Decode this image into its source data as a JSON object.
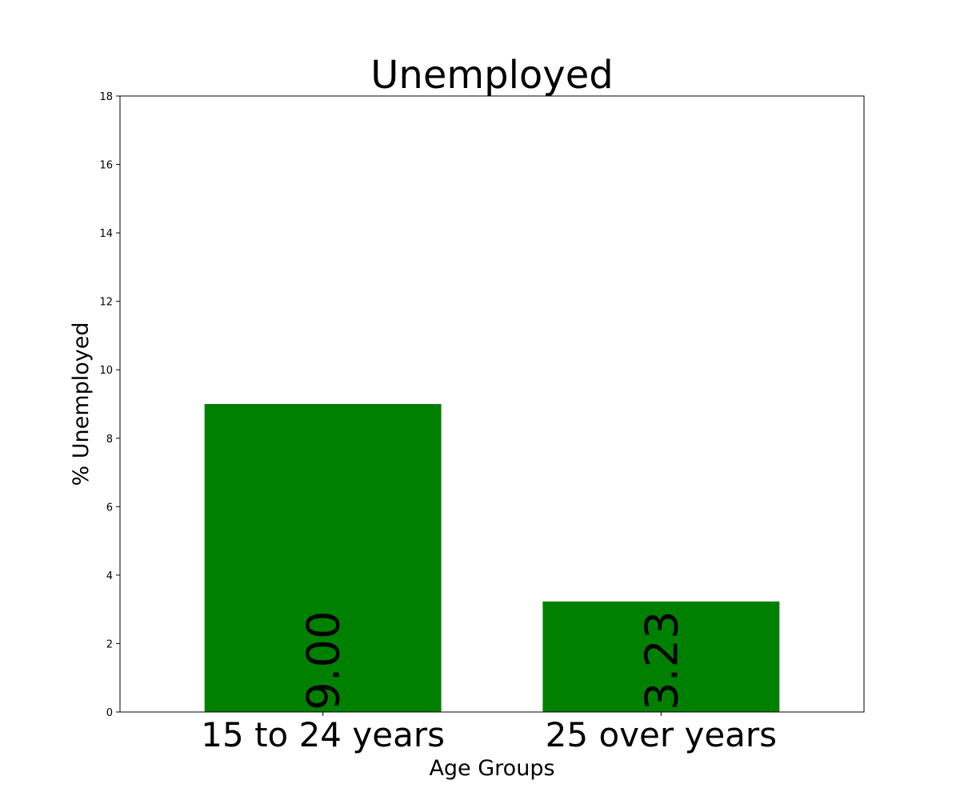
{
  "chart_data": {
    "type": "bar",
    "title": "Unemployed",
    "xlabel": "Age Groups",
    "ylabel": "% Unemployed",
    "categories": [
      "15 to 24 years",
      "25 over years"
    ],
    "values": [
      9.0,
      3.23
    ],
    "value_labels": [
      "9.00",
      "3.23"
    ],
    "ylim": [
      0,
      18
    ],
    "yticks": [
      0,
      2,
      4,
      6,
      8,
      10,
      12,
      14,
      16,
      18
    ],
    "bar_color": "#008000",
    "grid": false,
    "legend": "none"
  }
}
